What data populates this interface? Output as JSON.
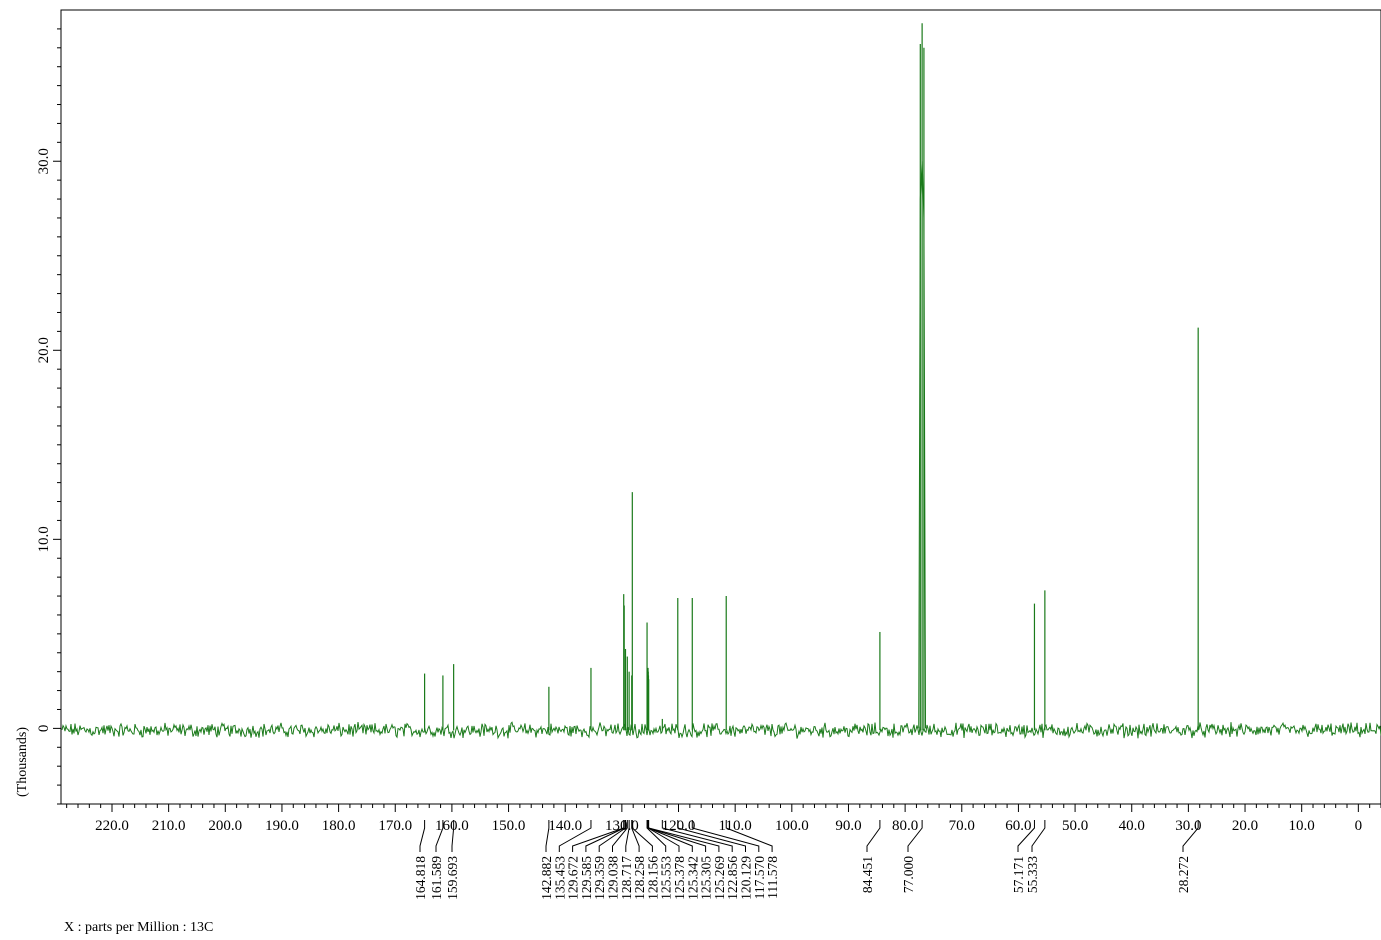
{
  "chart_data": {
    "type": "line",
    "title": "",
    "xlabel": "X : parts per Million : 13C",
    "ylabel": "(Thousands)",
    "xlim": [
      229.0,
      -4.0
    ],
    "ylim": [
      -4.0,
      38.0
    ],
    "x_ticks": [
      "220.0",
      "210.0",
      "200.0",
      "190.0",
      "180.0",
      "170.0",
      "160.0",
      "150.0",
      "140.0",
      "130.0",
      "120.0",
      "110.0",
      "100.0",
      "90.0",
      "80.0",
      "70.0",
      "60.0",
      "50.0",
      "40.0",
      "30.0",
      "20.0",
      "10.0",
      "0"
    ],
    "x_tick_values": [
      220,
      210,
      200,
      190,
      180,
      170,
      160,
      150,
      140,
      130,
      120,
      110,
      100,
      90,
      80,
      70,
      60,
      50,
      40,
      30,
      20,
      10,
      0
    ],
    "y_ticks": [
      "0",
      "10.0",
      "20.0",
      "30.0"
    ],
    "y_tick_values": [
      0,
      10,
      20,
      30
    ],
    "grid": false,
    "line_color": "#1a7a1a",
    "series": [
      {
        "x": [
          164.818,
          161.589,
          159.693,
          142.882,
          135.453,
          129.672,
          129.585,
          129.359,
          129.038,
          128.717,
          128.258,
          128.156,
          125.553,
          125.378,
          125.342,
          125.305,
          125.269,
          122.856,
          120.129,
          117.57,
          111.578,
          84.451,
          77.32,
          77.0,
          76.68,
          57.171,
          55.333,
          28.272
        ],
        "y": [
          2.9,
          2.8,
          3.4,
          2.2,
          3.2,
          7.1,
          6.5,
          4.2,
          3.8,
          3.0,
          2.8,
          12.5,
          5.6,
          3.2,
          3.0,
          2.8,
          2.6,
          0.5,
          6.9,
          6.9,
          7.0,
          5.1,
          36.2,
          37.3,
          36.0,
          6.6,
          7.3,
          21.2
        ]
      }
    ],
    "peak_labels": [
      "164.818",
      "161.589",
      "159.693",
      "142.882",
      "135.453",
      "129.672",
      "129.585",
      "129.359",
      "129.038",
      "128.717",
      "128.258",
      "128.156",
      "125.553",
      "125.378",
      "125.342",
      "125.305",
      "125.269",
      "122.856",
      "120.129",
      "117.570",
      "111.578",
      "84.451",
      "77.000",
      "57.171",
      "55.333",
      "28.272"
    ]
  }
}
